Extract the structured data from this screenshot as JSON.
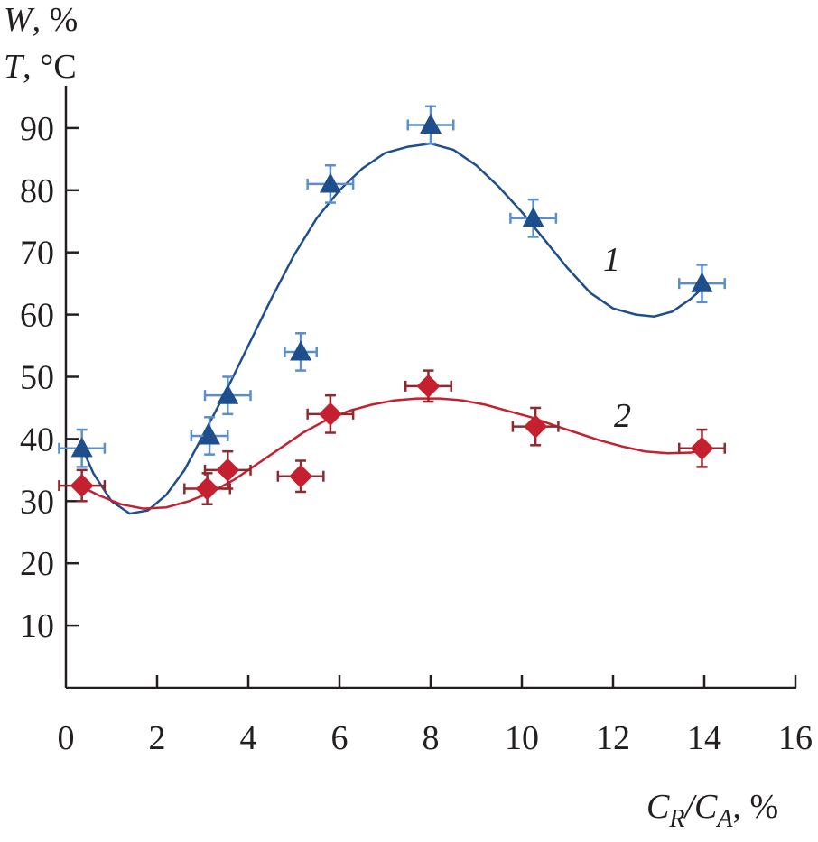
{
  "chart_data": {
    "type": "scatter",
    "title": "",
    "xlabel": "C_R/C_A, %",
    "ylabel": [
      "W, %",
      "T, °C"
    ],
    "xlim": [
      0,
      16
    ],
    "ylim": [
      0,
      100
    ],
    "x_ticks": [
      0,
      2,
      4,
      6,
      8,
      10,
      12,
      14,
      16
    ],
    "y_ticks": [
      10,
      20,
      30,
      40,
      50,
      60,
      70,
      80,
      90
    ],
    "grid": false,
    "series": [
      {
        "name": "1",
        "marker": "triangle",
        "marker_color": "#1f4e8c",
        "error_color": "#5b8fcb",
        "line_color": "#1f4e8c",
        "points": [
          {
            "x": 0.35,
            "y": 38.5,
            "xerr": 0.5,
            "yerr": 3
          },
          {
            "x": 3.15,
            "y": 40.5,
            "xerr": 0.4,
            "yerr": 3
          },
          {
            "x": 3.55,
            "y": 47,
            "xerr": 0.5,
            "yerr": 3
          },
          {
            "x": 5.15,
            "y": 54,
            "xerr": 0.35,
            "yerr": 3
          },
          {
            "x": 5.8,
            "y": 81,
            "xerr": 0.5,
            "yerr": 3
          },
          {
            "x": 8.0,
            "y": 90.5,
            "xerr": 0.5,
            "yerr": 3
          },
          {
            "x": 10.25,
            "y": 75.5,
            "xerr": 0.5,
            "yerr": 3
          },
          {
            "x": 13.95,
            "y": 65,
            "xerr": 0.5,
            "yerr": 3
          }
        ],
        "fit": [
          [
            0.3,
            39.5
          ],
          [
            0.6,
            34.5
          ],
          [
            1.0,
            30.0
          ],
          [
            1.4,
            28.0
          ],
          [
            1.8,
            28.5
          ],
          [
            2.2,
            31.0
          ],
          [
            2.6,
            35.0
          ],
          [
            3.0,
            40.5
          ],
          [
            3.5,
            47.5
          ],
          [
            4.0,
            55.0
          ],
          [
            4.5,
            62.5
          ],
          [
            5.0,
            69.5
          ],
          [
            5.5,
            75.5
          ],
          [
            6.0,
            80.0
          ],
          [
            6.5,
            83.5
          ],
          [
            7.0,
            86.0
          ],
          [
            7.5,
            87.0
          ],
          [
            8.0,
            87.5
          ],
          [
            8.5,
            86.5
          ],
          [
            9.0,
            84.0
          ],
          [
            9.5,
            80.5
          ],
          [
            10.0,
            76.5
          ],
          [
            10.5,
            72.0
          ],
          [
            11.0,
            67.5
          ],
          [
            11.5,
            63.5
          ],
          [
            12.0,
            61.0
          ],
          [
            12.5,
            60.0
          ],
          [
            12.9,
            59.7
          ],
          [
            13.3,
            60.5
          ],
          [
            13.7,
            62.5
          ],
          [
            14.0,
            64.5
          ]
        ]
      },
      {
        "name": "2",
        "marker": "diamond",
        "marker_color": "#c4202f",
        "error_color": "#8e2a2e",
        "line_color": "#c4202f",
        "points": [
          {
            "x": 0.35,
            "y": 32.5,
            "xerr": 0.5,
            "yerr": 2.5
          },
          {
            "x": 3.1,
            "y": 32,
            "xerr": 0.5,
            "yerr": 2.5
          },
          {
            "x": 3.55,
            "y": 35,
            "xerr": 0.5,
            "yerr": 3
          },
          {
            "x": 5.15,
            "y": 34,
            "xerr": 0.5,
            "yerr": 2.5
          },
          {
            "x": 5.8,
            "y": 44,
            "xerr": 0.5,
            "yerr": 3
          },
          {
            "x": 7.95,
            "y": 48.5,
            "xerr": 0.5,
            "yerr": 2.5
          },
          {
            "x": 10.3,
            "y": 42,
            "xerr": 0.5,
            "yerr": 3
          },
          {
            "x": 13.95,
            "y": 38.5,
            "xerr": 0.5,
            "yerr": 3
          }
        ],
        "fit": [
          [
            0.3,
            32.5
          ],
          [
            0.7,
            31.0
          ],
          [
            1.2,
            29.5
          ],
          [
            1.7,
            28.8
          ],
          [
            2.2,
            29.0
          ],
          [
            2.7,
            30.0
          ],
          [
            3.2,
            31.5
          ],
          [
            3.7,
            33.5
          ],
          [
            4.2,
            36.0
          ],
          [
            4.7,
            38.5
          ],
          [
            5.2,
            41.0
          ],
          [
            5.7,
            43.0
          ],
          [
            6.2,
            44.5
          ],
          [
            6.7,
            45.5
          ],
          [
            7.2,
            46.2
          ],
          [
            7.7,
            46.5
          ],
          [
            8.2,
            46.5
          ],
          [
            8.7,
            46.2
          ],
          [
            9.2,
            45.5
          ],
          [
            9.7,
            44.5
          ],
          [
            10.2,
            43.5
          ],
          [
            10.7,
            42.2
          ],
          [
            11.2,
            41.0
          ],
          [
            11.7,
            39.8
          ],
          [
            12.2,
            38.8
          ],
          [
            12.7,
            38.0
          ],
          [
            13.2,
            37.7
          ],
          [
            13.7,
            37.8
          ],
          [
            14.0,
            38.2
          ]
        ]
      }
    ],
    "axis_title_x": {
      "main": "C",
      "sub1": "R",
      "sep": "/C",
      "sub2": "A",
      "unit": ", %"
    },
    "axis_title_y": {
      "line1_var": "W",
      "line1_unit": ", %",
      "line2_var": "T",
      "line2_unit": ", °C"
    }
  }
}
